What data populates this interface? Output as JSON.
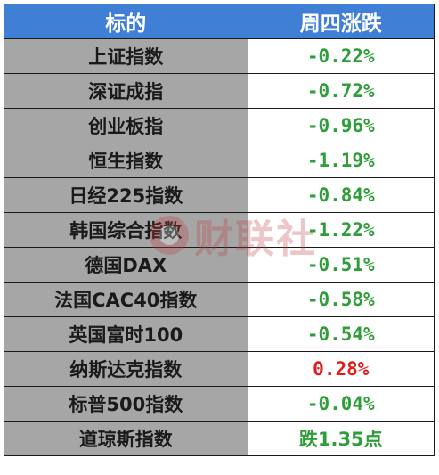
{
  "header": {
    "col_name": "标的",
    "col_change": "周四涨跌"
  },
  "rows": [
    {
      "name": "上证指数",
      "change": "-0.22%",
      "direction": "down"
    },
    {
      "name": "深证成指",
      "change": "-0.72%",
      "direction": "down"
    },
    {
      "name": "创业板指",
      "change": "-0.96%",
      "direction": "down"
    },
    {
      "name": "恒生指数",
      "change": "-1.19%",
      "direction": "down"
    },
    {
      "name": "日经225指数",
      "change": "-0.84%",
      "direction": "down"
    },
    {
      "name": "韩国综合指数",
      "change": "-1.22%",
      "direction": "down"
    },
    {
      "name": "德国DAX",
      "change": "-0.51%",
      "direction": "down"
    },
    {
      "name": "法国CAC40指数",
      "change": "-0.58%",
      "direction": "down"
    },
    {
      "name": "英国富时100",
      "change": "-0.54%",
      "direction": "down"
    },
    {
      "name": "纳斯达克指数",
      "change": "0.28%",
      "direction": "up"
    },
    {
      "name": "标普500指数",
      "change": "-0.04%",
      "direction": "down"
    },
    {
      "name": "道琼斯指数",
      "change": "跌1.35点",
      "direction": "points"
    }
  ],
  "watermark": {
    "text": "财联社"
  },
  "colors": {
    "header_bg": "#3f7fd6",
    "name_bg": "#a6a6a6",
    "down": "#2f9e3a",
    "up": "#e01b1b"
  }
}
